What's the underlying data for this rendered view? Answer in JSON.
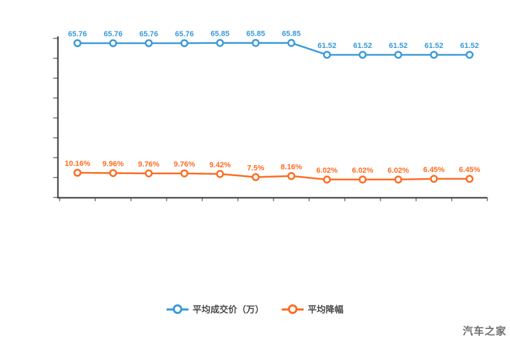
{
  "chart_data": {
    "type": "line",
    "num_points": 12,
    "x_tick_count": 13,
    "y_tick_count": 9,
    "x_axis_labels_visible": false,
    "y_axis_labels_visible": false,
    "grid": false,
    "axis_color": "#333333",
    "legend_position": "bottom",
    "series": [
      {
        "name": "平均成交价（万）",
        "color": "#3a9ad9",
        "values": [
          65.76,
          65.76,
          65.76,
          65.76,
          65.85,
          65.85,
          65.85,
          61.52,
          61.52,
          61.52,
          61.52,
          61.52
        ],
        "labels": [
          "65.76",
          "65.76",
          "65.76",
          "65.76",
          "65.85",
          "65.85",
          "65.85",
          "61.52",
          "61.52",
          "61.52",
          "61.52",
          "61.52"
        ]
      },
      {
        "name": "平均降幅",
        "color": "#fd6c21",
        "values": [
          10.16,
          9.96,
          9.76,
          9.76,
          9.42,
          7.5,
          8.16,
          6.02,
          6.02,
          6.02,
          6.45,
          6.45
        ],
        "labels": [
          "10.16%",
          "9.96%",
          "9.76%",
          "9.76%",
          "9.42%",
          "7.5%",
          "8.16%",
          "6.02%",
          "6.02%",
          "6.02%",
          "6.45%",
          "6.45%"
        ]
      }
    ]
  },
  "legend": {
    "items": [
      {
        "label": "平均成交价（万）",
        "color": "#3a9ad9"
      },
      {
        "label": "平均降幅",
        "color": "#fd6c21"
      }
    ]
  },
  "watermark": {
    "text": "汽车之家"
  }
}
